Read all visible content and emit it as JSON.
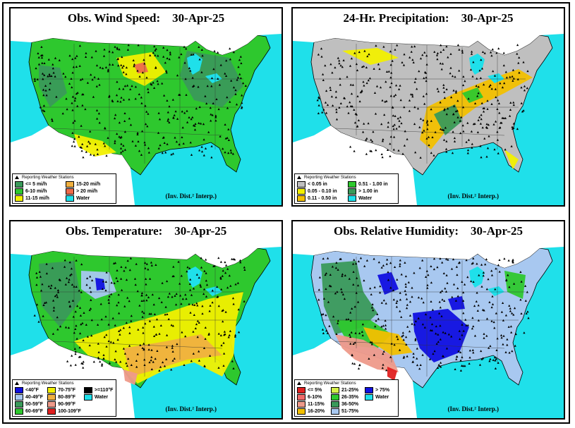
{
  "panels": [
    {
      "title": "Obs. Wind Speed:    30-Apr-25",
      "stations_label": "Reporting Weather Stations",
      "interp_label": "(Inv. Dist.² Interp.)",
      "dominant_color": "#2ec82e",
      "legend": [
        {
          "label": "<= 5 mi/h",
          "color": "#3a9a5a"
        },
        {
          "label": "15-20 mi/h",
          "color": "#f0b040"
        },
        {
          "label": "6-10 mi/h",
          "color": "#2ec82e"
        },
        {
          "label": "> 20 mi/h",
          "color": "#ee6a4a"
        },
        {
          "label": "11-15 mi/h",
          "color": "#f2f000"
        },
        {
          "label": "Water",
          "color": "#1fe0ea"
        }
      ]
    },
    {
      "title": "24-Hr. Precipitation:    30-Apr-25",
      "stations_label": "Reporting Weather Stations",
      "interp_label": "(Inv. Dist.² Interp.)",
      "dominant_color": "#bfbfbf",
      "legend": [
        {
          "label": "< 0.05 in",
          "color": "#bfbfbf"
        },
        {
          "label": "0.51 - 1.00 in",
          "color": "#2ec82e"
        },
        {
          "label": "0.05 - 0.10 in",
          "color": "#f2f000"
        },
        {
          "label": "> 1.00 in",
          "color": "#3a9a5a"
        },
        {
          "label": "0.11 - 0.50 in",
          "color": "#f2c000"
        },
        {
          "label": "Water",
          "color": "#1fe0ea"
        }
      ]
    },
    {
      "title": "Obs. Temperature:    30-Apr-25",
      "stations_label": "Reporting Weather Stations",
      "interp_label": "(Inv. Dist.² Interp.)",
      "dominant_color": "#2ec82e",
      "legend": [
        {
          "label": "<40°F",
          "color": "#1010e0"
        },
        {
          "label": "70-75°F",
          "color": "#f2f000"
        },
        {
          "label": ">=110°F",
          "color": "#000000"
        },
        {
          "label": "40-49°F",
          "color": "#a8c8f0"
        },
        {
          "label": "80-89°F",
          "color": "#f0b040"
        },
        {
          "label": "Water",
          "color": "#1fe0ea"
        },
        {
          "label": "50-59°F",
          "color": "#3a9a5a"
        },
        {
          "label": "90-99°F",
          "color": "#ee9a8a"
        },
        {
          "label": "",
          "color": ""
        },
        {
          "label": "60-69°F",
          "color": "#2ec82e"
        },
        {
          "label": "100-109°F",
          "color": "#e02020"
        },
        {
          "label": "",
          "color": ""
        }
      ]
    },
    {
      "title": "Obs. Relative Humidity:    30-Apr-25",
      "stations_label": "Reporting Weather Stations",
      "interp_label": "(Inv. Dist.² Interp.)",
      "dominant_color": "#a8c8f0",
      "legend": [
        {
          "label": "<= 5%",
          "color": "#e02020"
        },
        {
          "label": "21-25%",
          "color": "#d4f04a"
        },
        {
          "label": "> 75%",
          "color": "#1010e0"
        },
        {
          "label": "6-10%",
          "color": "#f06a6a"
        },
        {
          "label": "26-35%",
          "color": "#2ec82e"
        },
        {
          "label": "Water",
          "color": "#1fe0ea"
        },
        {
          "label": "11-15%",
          "color": "#ee9a8a"
        },
        {
          "label": "36-50%",
          "color": "#3a9a5a"
        },
        {
          "label": "",
          "color": ""
        },
        {
          "label": "16-20%",
          "color": "#f2c000"
        },
        {
          "label": "51-75%",
          "color": "#a8c8f0"
        },
        {
          "label": "",
          "color": ""
        }
      ]
    }
  ]
}
